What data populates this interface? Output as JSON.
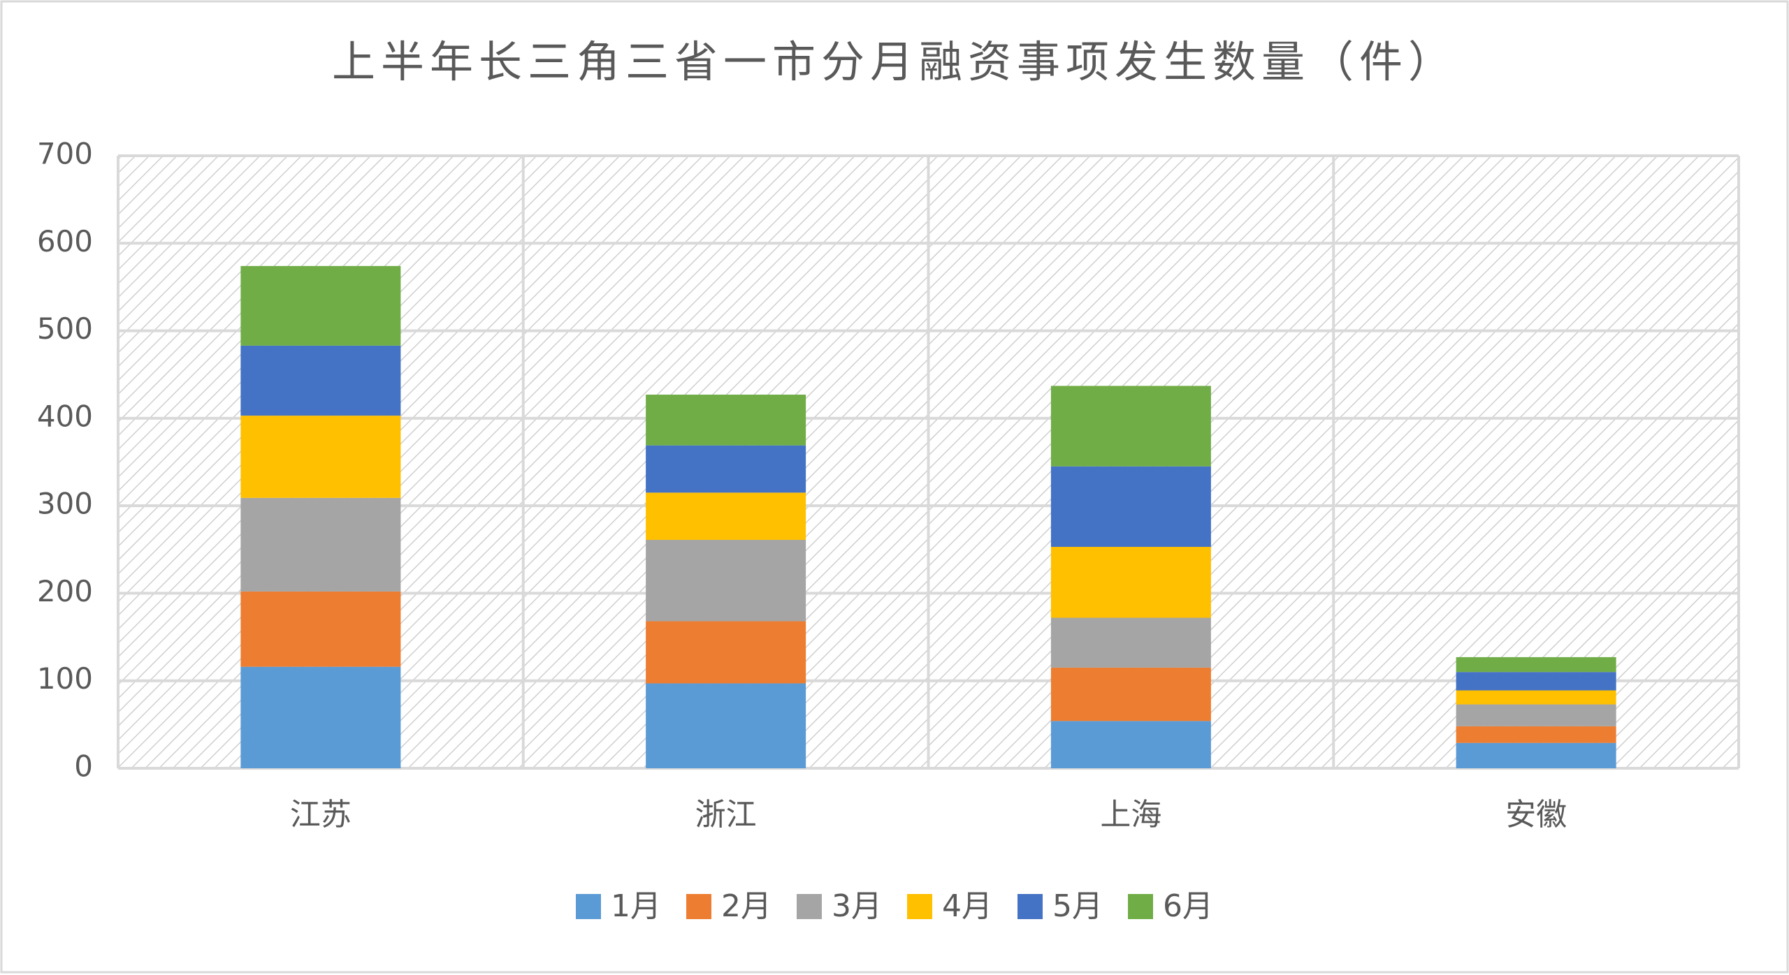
{
  "chart_data": {
    "type": "stacked-bar",
    "title": "上半年长三角三省一市分月融资事项发生数量（件）",
    "categories": [
      "江苏",
      "浙江",
      "上海",
      "安徽"
    ],
    "series": [
      {
        "name": "1月",
        "color": "#5b9bd5",
        "values": [
          116,
          97,
          54,
          29
        ]
      },
      {
        "name": "2月",
        "color": "#ed7d31",
        "values": [
          86,
          71,
          61,
          19
        ]
      },
      {
        "name": "3月",
        "color": "#a5a5a5",
        "values": [
          107,
          93,
          57,
          25
        ]
      },
      {
        "name": "4月",
        "color": "#ffc000",
        "values": [
          94,
          54,
          81,
          16
        ]
      },
      {
        "name": "5月",
        "color": "#4472c4",
        "values": [
          80,
          54,
          92,
          21
        ]
      },
      {
        "name": "6月",
        "color": "#70ad47",
        "values": [
          91,
          58,
          92,
          17
        ]
      }
    ],
    "ylim": [
      0,
      700
    ],
    "yticks": [
      0,
      100,
      200,
      300,
      400,
      500,
      600,
      700
    ],
    "grid": true,
    "legend": "bottom"
  }
}
